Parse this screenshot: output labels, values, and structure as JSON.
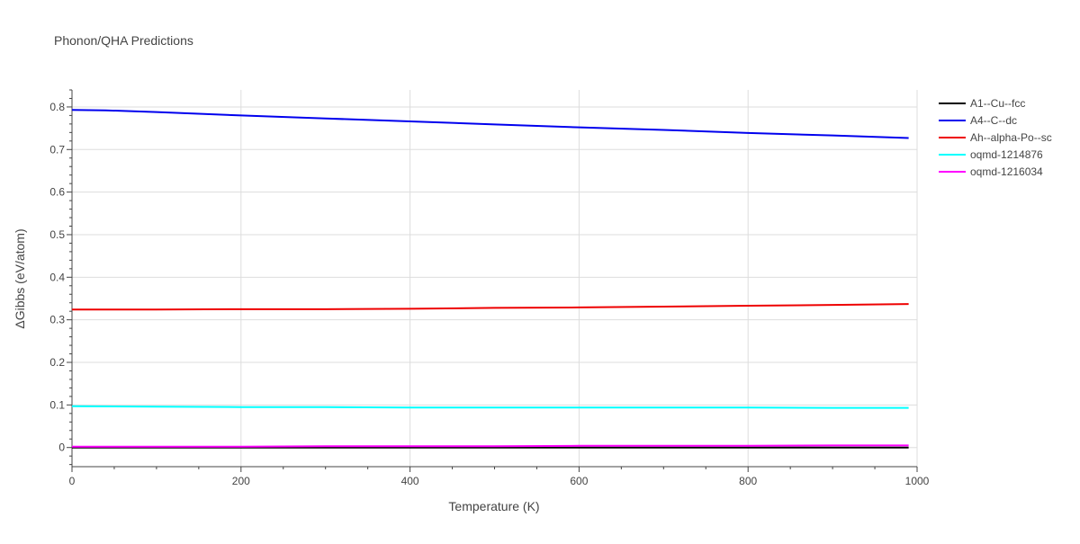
{
  "chart_data": {
    "type": "line",
    "title": "Phonon/QHA Predictions",
    "xlabel": "Temperature (K)",
    "ylabel": "ΔGibbs (eV/atom)",
    "xlim": [
      0,
      1000
    ],
    "ylim": [
      -0.045,
      0.84
    ],
    "xticks": [
      0,
      200,
      400,
      600,
      800,
      1000
    ],
    "xtick_labels": [
      "0",
      "200",
      "400",
      "600",
      "800",
      "1000"
    ],
    "yticks": [
      0,
      0.1,
      0.2,
      0.3,
      0.4,
      0.5,
      0.6,
      0.7,
      0.8
    ],
    "ytick_labels": [
      "0",
      "0.1",
      "0.2",
      "0.3",
      "0.4",
      "0.5",
      "0.6",
      "0.7",
      "0.8"
    ],
    "grid": true,
    "legend_position": "top-right, outside plot",
    "series": [
      {
        "name": "A1--Cu--fcc",
        "color": "#000000",
        "x": [
          0,
          100,
          200,
          300,
          400,
          500,
          600,
          700,
          800,
          900,
          990
        ],
        "y": [
          0,
          0,
          0,
          0,
          0,
          0,
          0,
          0,
          0,
          0,
          0
        ]
      },
      {
        "name": "A4--C--dc",
        "color": "#0000ee",
        "x": [
          0,
          40,
          100,
          200,
          300,
          400,
          500,
          600,
          700,
          800,
          900,
          990
        ],
        "y": [
          0.793,
          0.792,
          0.788,
          0.78,
          0.773,
          0.766,
          0.759,
          0.752,
          0.746,
          0.739,
          0.733,
          0.727
        ]
      },
      {
        "name": "Ah--alpha-Po--sc",
        "color": "#ee0000",
        "x": [
          0,
          100,
          200,
          300,
          400,
          500,
          600,
          700,
          800,
          900,
          990
        ],
        "y": [
          0.324,
          0.324,
          0.325,
          0.325,
          0.326,
          0.328,
          0.329,
          0.331,
          0.333,
          0.335,
          0.337
        ]
      },
      {
        "name": "oqmd-1214876",
        "color": "#00ffff",
        "x": [
          0,
          100,
          200,
          300,
          400,
          500,
          600,
          700,
          800,
          900,
          990
        ],
        "y": [
          0.097,
          0.096,
          0.095,
          0.095,
          0.094,
          0.094,
          0.094,
          0.094,
          0.094,
          0.093,
          0.093
        ]
      },
      {
        "name": "oqmd-1216034",
        "color": "#ff00ff",
        "x": [
          0,
          100,
          200,
          300,
          400,
          500,
          600,
          700,
          800,
          900,
          990
        ],
        "y": [
          0.002,
          0.002,
          0.002,
          0.003,
          0.003,
          0.003,
          0.004,
          0.004,
          0.004,
          0.005,
          0.005
        ]
      }
    ]
  }
}
